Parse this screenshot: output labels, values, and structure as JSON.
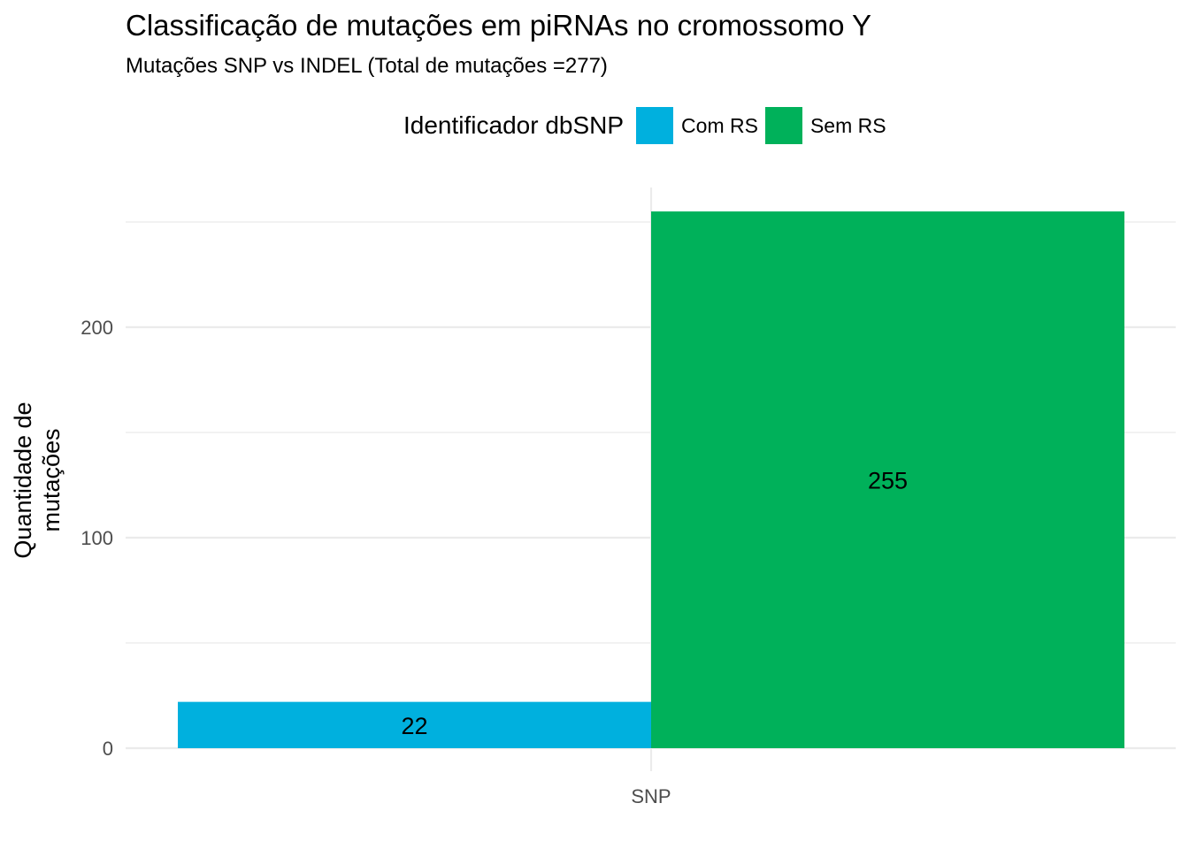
{
  "title": "Classificação de mutações em piRNAs no cromossomo Y",
  "subtitle": "Mutações SNP vs INDEL (Total de mutações =277)",
  "legend": {
    "title": "Identificador dbSNP",
    "items": [
      {
        "label": "Com RS",
        "color": "#00B0DE"
      },
      {
        "label": "Sem RS",
        "color": "#00B15A"
      }
    ]
  },
  "chart_data": {
    "type": "bar",
    "categories": [
      "SNP"
    ],
    "series": [
      {
        "name": "Com RS",
        "values": [
          22
        ],
        "color": "#00B0DE"
      },
      {
        "name": "Sem RS",
        "values": [
          255
        ],
        "color": "#00B15A"
      }
    ],
    "position": "dodge",
    "data_labels": [
      "22",
      "255"
    ],
    "ylabel": "Quantidade de\nmutações",
    "xlabel": "",
    "yticks": [
      0,
      100,
      200
    ],
    "ylim": [
      0,
      267
    ],
    "grid": true,
    "legend_position": "top"
  }
}
